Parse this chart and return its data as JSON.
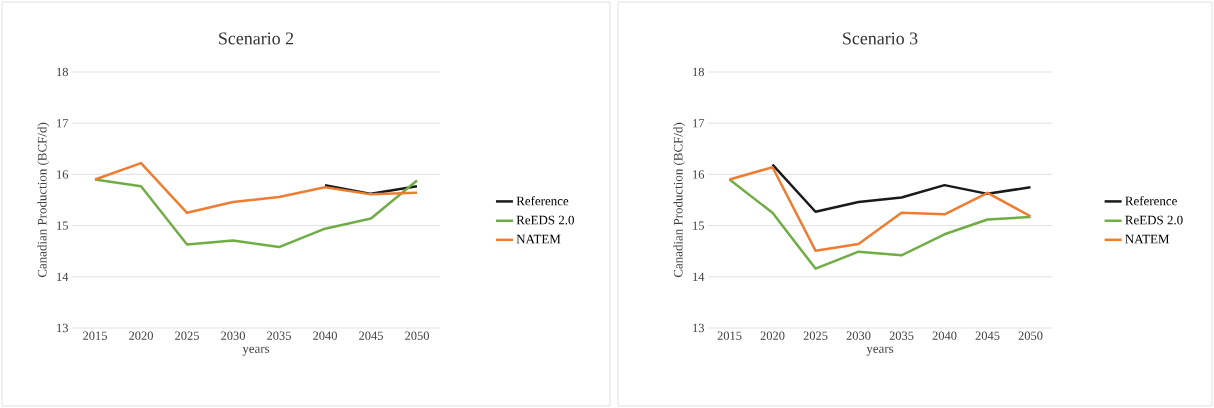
{
  "chart_data": [
    {
      "type": "line",
      "title": "Scenario 2",
      "xlabel": "years",
      "ylabel": "Canadian Production (BCF/d)",
      "categories": [
        "2015",
        "2020",
        "2025",
        "2030",
        "2035",
        "2040",
        "2045",
        "2050"
      ],
      "ylim": [
        13,
        18
      ],
      "yticks": [
        13,
        14,
        15,
        16,
        17,
        18
      ],
      "grid": "y",
      "legend": "right",
      "series": [
        {
          "name": "Reference",
          "color": "#1a1a1a",
          "values": [
            null,
            null,
            null,
            null,
            null,
            15.79,
            15.62,
            15.77
          ]
        },
        {
          "name": "ReEDS 2.0",
          "color": "#70ad47",
          "values": [
            15.9,
            15.77,
            14.63,
            14.71,
            14.58,
            14.94,
            15.14,
            15.88
          ]
        },
        {
          "name": "NATEM",
          "color": "#ed7d31",
          "values": [
            15.9,
            16.22,
            15.25,
            15.46,
            15.56,
            15.75,
            15.61,
            15.64
          ]
        }
      ]
    },
    {
      "type": "line",
      "title": "Scenario 3",
      "xlabel": "years",
      "ylabel": "Canadian Production (BCF/d)",
      "categories": [
        "2015",
        "2020",
        "2025",
        "2030",
        "2035",
        "2040",
        "2045",
        "2050"
      ],
      "ylim": [
        13,
        18
      ],
      "yticks": [
        13,
        14,
        15,
        16,
        17,
        18
      ],
      "grid": "y",
      "legend": "right",
      "series": [
        {
          "name": "Reference",
          "color": "#1a1a1a",
          "values": [
            null,
            16.19,
            15.27,
            15.46,
            15.55,
            15.79,
            15.62,
            15.75
          ]
        },
        {
          "name": "ReEDS 2.0",
          "color": "#70ad47",
          "values": [
            15.9,
            15.25,
            14.16,
            14.49,
            14.42,
            14.83,
            15.12,
            15.17
          ]
        },
        {
          "name": "NATEM",
          "color": "#ed7d31",
          "values": [
            15.9,
            16.14,
            14.51,
            14.64,
            15.25,
            15.22,
            15.64,
            15.18
          ]
        }
      ]
    }
  ]
}
